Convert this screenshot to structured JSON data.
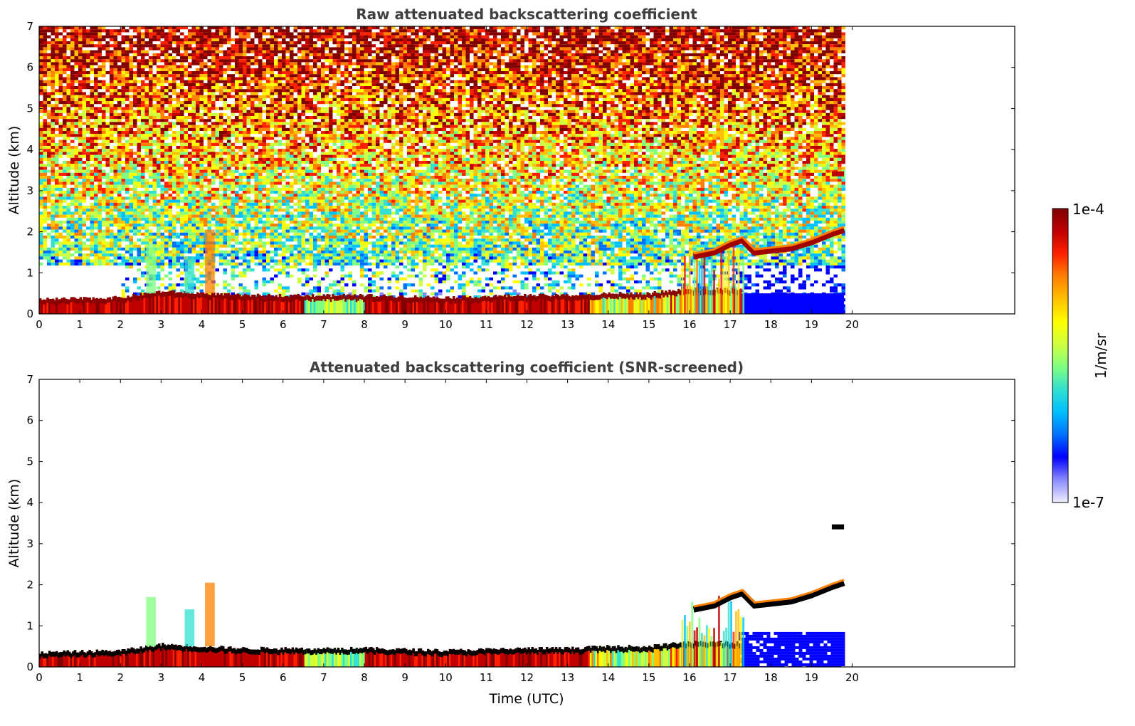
{
  "chart_data": [
    {
      "type": "heatmap",
      "title": "Raw attenuated backscattering coefficient",
      "xlabel": "",
      "ylabel": "Altitude (km)",
      "xlim": [
        0,
        24
      ],
      "ylim": [
        0,
        7
      ],
      "x_ticks": [
        0,
        1,
        2,
        3,
        4,
        5,
        6,
        7,
        8,
        9,
        10,
        11,
        12,
        13,
        14,
        15,
        16,
        17,
        18,
        19,
        20
      ],
      "y_ticks": [
        0,
        1,
        2,
        3,
        4,
        5,
        6,
        7
      ],
      "data_end_time": 19.8,
      "screened": false,
      "features": {
        "boundary_layer_top_km": [
          [
            0,
            0.35
          ],
          [
            2,
            0.4
          ],
          [
            3,
            0.55
          ],
          [
            5,
            0.45
          ],
          [
            8,
            0.45
          ],
          [
            10,
            0.4
          ],
          [
            12,
            0.45
          ],
          [
            13,
            0.45
          ],
          [
            14,
            0.5
          ],
          [
            15,
            0.5
          ],
          [
            15.8,
            0.6
          ]
        ],
        "plumes": [
          {
            "t": 2.75,
            "top_km": 1.7,
            "level": "mid"
          },
          {
            "t": 4.2,
            "top_km": 2.05,
            "level": "high"
          },
          {
            "t": 3.7,
            "top_km": 1.4,
            "level": "low"
          }
        ],
        "elevated_layer": [
          [
            16.1,
            1.4
          ],
          [
            16.6,
            1.5
          ],
          [
            17.0,
            1.7
          ],
          [
            17.3,
            1.8
          ],
          [
            17.6,
            1.5
          ],
          [
            18.5,
            1.6
          ],
          [
            19.0,
            1.75
          ],
          [
            19.5,
            1.95
          ],
          [
            19.8,
            2.05
          ]
        ],
        "thin_layer": {
          "t_range": [
            19.5,
            19.8
          ],
          "alt_km": 3.4
        },
        "low_signal_region": {
          "t_range": [
            17.2,
            19.8
          ],
          "alt_range_km": [
            0,
            1.2
          ]
        }
      }
    },
    {
      "type": "heatmap",
      "title": "Attenuated backscattering coefficient (SNR-screened)",
      "xlabel": "Time (UTC)",
      "ylabel": "Altitude (km)",
      "xlim": [
        0,
        24
      ],
      "ylim": [
        0,
        7
      ],
      "x_ticks": [
        0,
        1,
        2,
        3,
        4,
        5,
        6,
        7,
        8,
        9,
        10,
        11,
        12,
        13,
        14,
        15,
        16,
        17,
        18,
        19,
        20
      ],
      "y_ticks": [
        0,
        1,
        2,
        3,
        4,
        5,
        6,
        7
      ],
      "data_end_time": 19.8,
      "screened": true
    }
  ],
  "colorbar": {
    "label": "1/m/sr",
    "max_label": "1e-4",
    "min_label": "1e-7",
    "colormap": [
      "#f0f0ff",
      "#8a8aff",
      "#0000ff",
      "#0070ff",
      "#00c0ff",
      "#30e0d0",
      "#80ff80",
      "#d0ff40",
      "#ffff00",
      "#ffc000",
      "#ff8000",
      "#ff2000",
      "#c00000",
      "#800000"
    ]
  }
}
